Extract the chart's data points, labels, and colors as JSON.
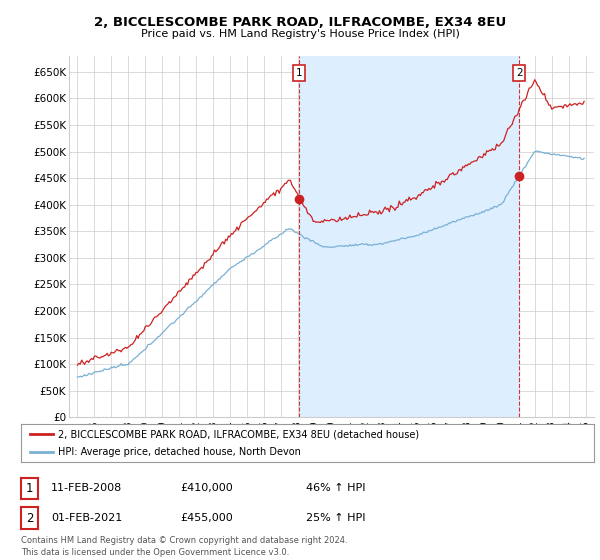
{
  "title1": "2, BICCLESCOMBE PARK ROAD, ILFRACOMBE, EX34 8EU",
  "title2": "Price paid vs. HM Land Registry's House Price Index (HPI)",
  "ylim": [
    0,
    680000
  ],
  "yticks": [
    0,
    50000,
    100000,
    150000,
    200000,
    250000,
    300000,
    350000,
    400000,
    450000,
    500000,
    550000,
    600000,
    650000
  ],
  "ytick_labels": [
    "£0",
    "£50K",
    "£100K",
    "£150K",
    "£200K",
    "£250K",
    "£300K",
    "£350K",
    "£400K",
    "£450K",
    "£500K",
    "£550K",
    "£600K",
    "£650K"
  ],
  "sale1_date": 2008.08,
  "sale1_price": 410000,
  "sale2_date": 2021.08,
  "sale2_price": 455000,
  "legend_line1": "2, BICCLESCOMBE PARK ROAD, ILFRACOMBE, EX34 8EU (detached house)",
  "legend_line2": "HPI: Average price, detached house, North Devon",
  "annot1_date": "11-FEB-2008",
  "annot1_price": "£410,000",
  "annot1_hpi": "46% ↑ HPI",
  "annot2_date": "01-FEB-2021",
  "annot2_price": "£455,000",
  "annot2_hpi": "25% ↑ HPI",
  "footer": "Contains HM Land Registry data © Crown copyright and database right 2024.\nThis data is licensed under the Open Government Licence v3.0.",
  "red_color": "#cc2222",
  "blue_color": "#7ab0d4",
  "shade_color": "#ddeeff",
  "bg_color": "#ffffff",
  "grid_color": "#cccccc"
}
